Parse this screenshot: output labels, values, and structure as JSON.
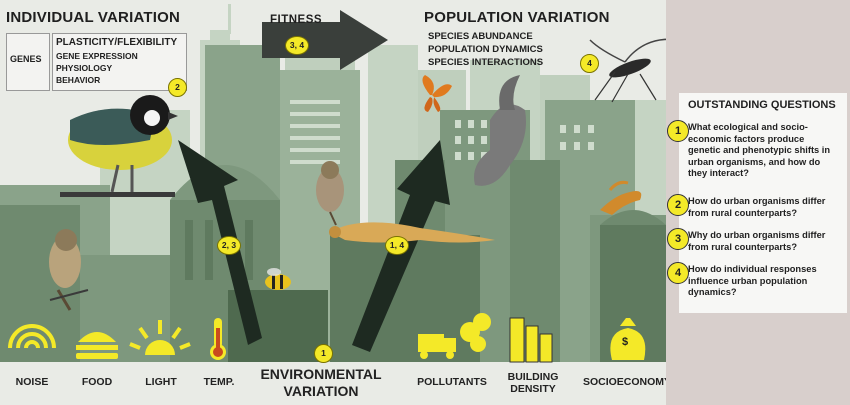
{
  "individual_variation": {
    "title": "INDIVIDUAL VARIATION",
    "genes_label": "GENES",
    "plasticity_title": "PLASTICITY/FLEXIBILITY",
    "plasticity_items": [
      "GENE EXPRESSION",
      "PHYSIOLOGY",
      "BEHAVIOR"
    ],
    "badge": "2"
  },
  "fitness": {
    "label": "FITNESS",
    "badge": "3, 4"
  },
  "population_variation": {
    "title": "POPULATION VARIATION",
    "items": [
      "SPECIES ABUNDANCE",
      "POPULATION DYNAMICS",
      "SPECIES INTERACTIONS"
    ],
    "badge": "4"
  },
  "arrows": {
    "left_badge": "2, 3",
    "middle_badge": "1, 4"
  },
  "environmental_variation": {
    "label": "ENVIRONMENTAL VARIATION",
    "badge": "1"
  },
  "bottom_labels": {
    "noise": "NOISE",
    "food": "FOOD",
    "light": "LIGHT",
    "temp": "TEMP.",
    "pollutants": "POLLUTANTS",
    "building_density": "BUILDING DENSITY",
    "socioeconomy": "SOCIOECONOMY"
  },
  "outstanding_questions": {
    "title": "OUTSTANDING QUESTIONS",
    "questions": [
      {
        "num": "1",
        "text": "What ecological and socio-economic factors produce genetic and phenotypic shifts in urban organisms, and how do they interact?"
      },
      {
        "num": "2",
        "text": "How do urban organisms differ from rural counterparts?"
      },
      {
        "num": "3",
        "text": "Why do urban organisms differ from rural counterparts?"
      },
      {
        "num": "4",
        "text": "How do individual responses influence urban population dynamics?"
      }
    ]
  },
  "money_symbol": "$",
  "colors": {
    "building_dark": "#6f8a6f",
    "building_mid": "#8aa38a",
    "building_light": "#b4c7b3",
    "accent_yellow": "#f4e928",
    "arrow_dark": "#1e2a21",
    "panel_bg": "#d8cfcc"
  },
  "icons": [
    "noise-waves-icon",
    "burger-icon",
    "light-rays-icon",
    "thermometer-icon",
    "pollution-truck-icon",
    "building-density-icon",
    "money-bag-icon",
    "fitness-arrow-icon"
  ]
}
